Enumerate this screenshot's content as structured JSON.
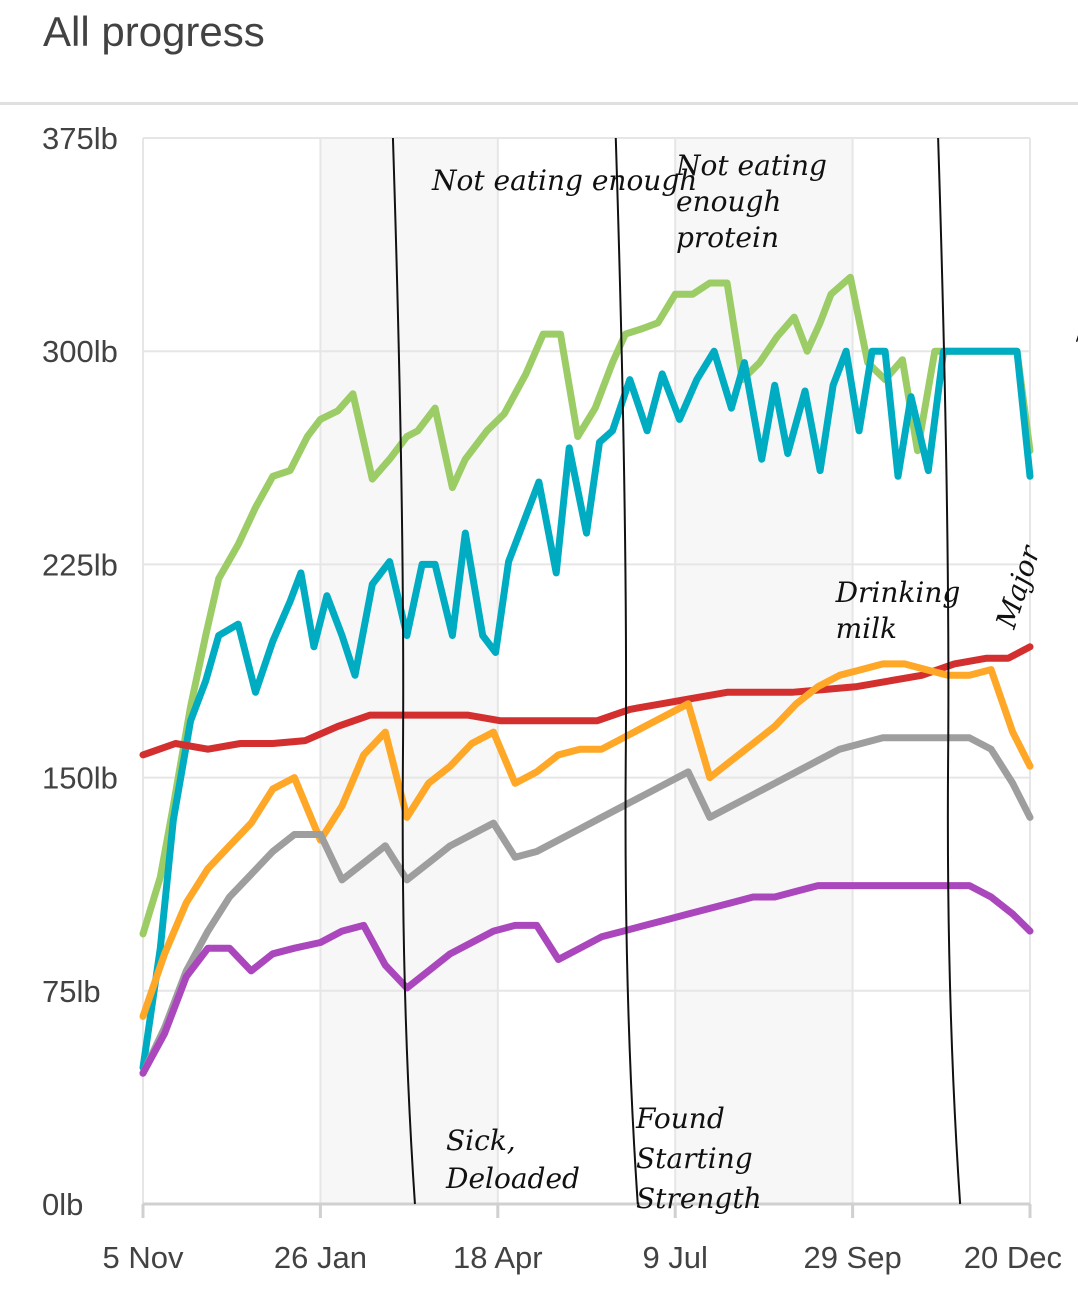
{
  "header": {
    "title": "All progress"
  },
  "chart_data": {
    "type": "line",
    "title": "All progress",
    "xlabel": "",
    "ylabel": "",
    "ylim": [
      0,
      375
    ],
    "y_ticks": [
      "375lb",
      "300lb",
      "225lb",
      "150lb",
      "75lb",
      "0lb"
    ],
    "y_tick_values": [
      375,
      300,
      225,
      150,
      75,
      0
    ],
    "x_ticks": [
      "5 Nov",
      "26 Jan",
      "18 Apr",
      "9 Jul",
      "29 Sep",
      "20 Dec"
    ],
    "x_tick_dates": [
      "2012-11-05",
      "2013-01-26",
      "2013-04-18",
      "2013-07-09",
      "2013-09-29",
      "2013-12-20"
    ],
    "xlim": [
      "2012-11-05",
      "2013-12-20"
    ],
    "grid": true,
    "legend": "none",
    "shaded_ranges": [
      [
        "2013-01-26",
        "2013-04-18"
      ],
      [
        "2013-07-09",
        "2013-09-29"
      ]
    ],
    "series": [
      {
        "color": "#9ccc65",
        "x": [
          "2012-11-05",
          "2012-11-13",
          "2012-11-19",
          "2012-11-27",
          "2012-12-04",
          "2012-12-10",
          "2012-12-19",
          "2012-12-27",
          "2013-01-04",
          "2013-01-12",
          "2013-01-20",
          "2013-01-26",
          "2013-02-03",
          "2013-02-10",
          "2013-02-19",
          "2013-02-27",
          "2013-03-07",
          "2013-03-12",
          "2013-03-20",
          "2013-03-28",
          "2013-04-03",
          "2013-04-13",
          "2013-04-21",
          "2013-05-01",
          "2013-05-09",
          "2013-05-17",
          "2013-05-25",
          "2013-06-02",
          "2013-06-10",
          "2013-06-16",
          "2013-06-24",
          "2013-07-01",
          "2013-07-09",
          "2013-07-17",
          "2013-07-25",
          "2013-08-02",
          "2013-08-09",
          "2013-08-17",
          "2013-08-25",
          "2013-09-02",
          "2013-09-08",
          "2013-09-14",
          "2013-09-19",
          "2013-09-28",
          "2013-10-06",
          "2013-10-14",
          "2013-10-22",
          "2013-10-29",
          "2013-11-06",
          "2013-11-14",
          "2013-11-21",
          "2013-11-26",
          "2013-12-02",
          "2013-12-07",
          "2013-12-14",
          "2013-12-20"
        ],
        "y": [
          95,
          115,
          140,
          175,
          200,
          220,
          232,
          245,
          256,
          258,
          270,
          276,
          279,
          285,
          255,
          262,
          270,
          272,
          280,
          252,
          262,
          272,
          278,
          292,
          306,
          306,
          270,
          280,
          296,
          306,
          308,
          310,
          320,
          320,
          324,
          324,
          290,
          296,
          305,
          312,
          300,
          310,
          320,
          326,
          296,
          290,
          297,
          265,
          300,
          300,
          300,
          300,
          300,
          300,
          300,
          265
        ]
      },
      {
        "color": "#00acc1",
        "x": [
          "2012-11-05",
          "2012-11-13",
          "2012-11-19",
          "2012-11-27",
          "2012-12-04",
          "2012-12-10",
          "2012-12-19",
          "2012-12-27",
          "2013-01-04",
          "2013-01-12",
          "2013-01-17",
          "2013-01-23",
          "2013-01-29",
          "2013-02-05",
          "2013-02-11",
          "2013-02-19",
          "2013-02-27",
          "2013-03-07",
          "2013-03-14",
          "2013-03-20",
          "2013-03-28",
          "2013-04-03",
          "2013-04-11",
          "2013-04-17",
          "2013-04-23",
          "2013-05-01",
          "2013-05-07",
          "2013-05-15",
          "2013-05-21",
          "2013-05-29",
          "2013-06-04",
          "2013-06-10",
          "2013-06-18",
          "2013-06-26",
          "2013-07-03",
          "2013-07-11",
          "2013-07-19",
          "2013-07-27",
          "2013-08-04",
          "2013-08-10",
          "2013-08-18",
          "2013-08-24",
          "2013-08-30",
          "2013-09-07",
          "2013-09-14",
          "2013-09-20",
          "2013-09-26",
          "2013-10-02",
          "2013-10-08",
          "2013-10-14",
          "2013-10-20",
          "2013-10-26",
          "2013-11-03",
          "2013-11-10",
          "2013-11-17",
          "2013-11-24",
          "2013-12-01",
          "2013-12-08",
          "2013-12-14",
          "2013-12-20"
        ],
        "y": [
          48,
          90,
          135,
          170,
          184,
          200,
          204,
          180,
          198,
          212,
          222,
          196,
          214,
          200,
          186,
          218,
          226,
          200,
          225,
          225,
          200,
          236,
          200,
          194,
          226,
          242,
          254,
          222,
          266,
          236,
          268,
          272,
          290,
          272,
          292,
          276,
          290,
          300,
          280,
          296,
          262,
          288,
          264,
          286,
          258,
          288,
          300,
          272,
          300,
          300,
          256,
          284,
          258,
          300,
          300,
          300,
          300,
          300,
          300,
          256
        ]
      },
      {
        "color": "#d32f2f",
        "x": [
          "2012-11-05",
          "2012-11-20",
          "2012-12-05",
          "2012-12-20",
          "2013-01-04",
          "2013-01-19",
          "2013-02-03",
          "2013-02-18",
          "2013-03-05",
          "2013-03-20",
          "2013-04-04",
          "2013-04-19",
          "2013-05-04",
          "2013-05-19",
          "2013-06-03",
          "2013-06-18",
          "2013-07-03",
          "2013-07-18",
          "2013-08-02",
          "2013-08-17",
          "2013-09-01",
          "2013-09-16",
          "2013-10-01",
          "2013-10-16",
          "2013-10-31",
          "2013-11-15",
          "2013-11-30",
          "2013-12-10",
          "2013-12-20"
        ],
        "y": [
          158,
          162,
          160,
          162,
          162,
          163,
          168,
          172,
          172,
          172,
          172,
          170,
          170,
          170,
          170,
          174,
          176,
          178,
          180,
          180,
          180,
          181,
          182,
          184,
          186,
          190,
          192,
          192,
          196
        ]
      },
      {
        "color": "#ffa726",
        "x": [
          "2012-11-05",
          "2012-11-15",
          "2012-11-25",
          "2012-12-05",
          "2012-12-15",
          "2012-12-25",
          "2013-01-04",
          "2013-01-14",
          "2013-01-26",
          "2013-02-05",
          "2013-02-15",
          "2013-02-25",
          "2013-03-07",
          "2013-03-17",
          "2013-03-27",
          "2013-04-06",
          "2013-04-16",
          "2013-04-26",
          "2013-05-06",
          "2013-05-16",
          "2013-05-26",
          "2013-06-05",
          "2013-06-15",
          "2013-06-25",
          "2013-07-05",
          "2013-07-15",
          "2013-07-25",
          "2013-08-04",
          "2013-08-14",
          "2013-08-24",
          "2013-09-03",
          "2013-09-13",
          "2013-09-23",
          "2013-10-03",
          "2013-10-13",
          "2013-10-23",
          "2013-11-02",
          "2013-11-12",
          "2013-11-22",
          "2013-12-02",
          "2013-12-12",
          "2013-12-20"
        ],
        "y": [
          66,
          88,
          106,
          118,
          126,
          134,
          146,
          150,
          128,
          140,
          158,
          166,
          136,
          148,
          154,
          162,
          166,
          148,
          152,
          158,
          160,
          160,
          164,
          168,
          172,
          176,
          150,
          156,
          162,
          168,
          176,
          182,
          186,
          188,
          190,
          190,
          188,
          186,
          186,
          188,
          166,
          154
        ]
      },
      {
        "color": "#9e9e9e",
        "x": [
          "2012-11-05",
          "2012-11-15",
          "2012-11-25",
          "2012-12-05",
          "2012-12-15",
          "2012-12-25",
          "2013-01-04",
          "2013-01-14",
          "2013-01-26",
          "2013-02-05",
          "2013-02-15",
          "2013-02-25",
          "2013-03-07",
          "2013-03-17",
          "2013-03-27",
          "2013-04-06",
          "2013-04-16",
          "2013-04-26",
          "2013-05-06",
          "2013-05-16",
          "2013-05-26",
          "2013-06-05",
          "2013-06-15",
          "2013-06-25",
          "2013-07-05",
          "2013-07-15",
          "2013-07-25",
          "2013-08-04",
          "2013-08-14",
          "2013-08-24",
          "2013-09-03",
          "2013-09-13",
          "2013-09-23",
          "2013-10-03",
          "2013-10-13",
          "2013-10-23",
          "2013-11-02",
          "2013-11-12",
          "2013-11-22",
          "2013-12-02",
          "2013-12-12",
          "2013-12-20"
        ],
        "y": [
          46,
          62,
          82,
          96,
          108,
          116,
          124,
          130,
          130,
          114,
          120,
          126,
          114,
          120,
          126,
          130,
          134,
          122,
          124,
          128,
          132,
          136,
          140,
          144,
          148,
          152,
          136,
          140,
          144,
          148,
          152,
          156,
          160,
          162,
          164,
          164,
          164,
          164,
          164,
          160,
          148,
          136
        ]
      },
      {
        "color": "#ab47bc",
        "x": [
          "2012-11-05",
          "2012-11-15",
          "2012-11-25",
          "2012-12-05",
          "2012-12-15",
          "2012-12-25",
          "2013-01-04",
          "2013-01-14",
          "2013-01-26",
          "2013-02-05",
          "2013-02-15",
          "2013-02-25",
          "2013-03-07",
          "2013-03-17",
          "2013-03-27",
          "2013-04-06",
          "2013-04-16",
          "2013-04-26",
          "2013-05-06",
          "2013-05-16",
          "2013-05-26",
          "2013-06-05",
          "2013-06-15",
          "2013-06-25",
          "2013-07-05",
          "2013-07-15",
          "2013-07-25",
          "2013-08-04",
          "2013-08-14",
          "2013-08-24",
          "2013-09-03",
          "2013-09-13",
          "2013-09-23",
          "2013-10-03",
          "2013-10-13",
          "2013-10-23",
          "2013-11-02",
          "2013-11-12",
          "2013-11-22",
          "2013-12-02",
          "2013-12-12",
          "2013-12-20"
        ],
        "y": [
          46,
          60,
          80,
          90,
          90,
          82,
          88,
          90,
          92,
          96,
          98,
          84,
          76,
          82,
          88,
          92,
          96,
          98,
          98,
          86,
          90,
          94,
          96,
          98,
          100,
          102,
          104,
          106,
          108,
          108,
          110,
          112,
          112,
          112,
          112,
          112,
          112,
          112,
          112,
          108,
          102,
          96
        ]
      }
    ],
    "event_lines": [
      {
        "date": "2013-03-07",
        "top": "Not eating enough",
        "bottom": "Sick, Deloaded"
      },
      {
        "date": "2013-06-18",
        "top": "Not eating enough protein",
        "bottom": "Found Starting Strength"
      },
      {
        "date": "2013-11-14",
        "top": "Major Disruption",
        "bottom": ""
      }
    ],
    "annotations": [
      {
        "text": "Drinking milk",
        "date": "2013-10-05",
        "y": 200
      }
    ]
  }
}
